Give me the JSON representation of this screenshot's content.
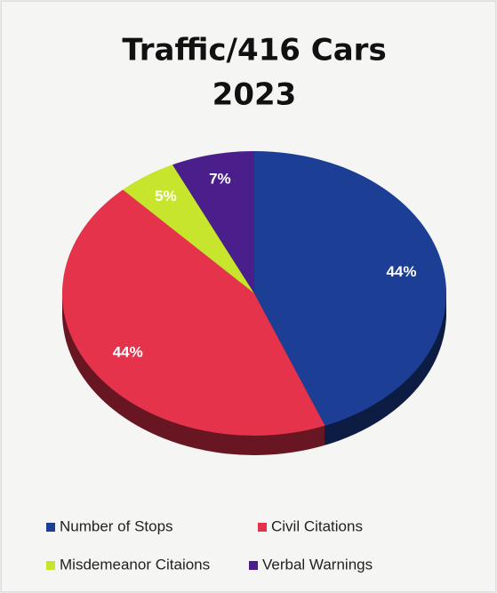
{
  "chart_data": {
    "type": "pie",
    "title": [
      "Traffic/416 Cars",
      "2023"
    ],
    "categories": [
      "Number of Stops",
      "Civil Citations",
      "Misdemeanor Citaions",
      "Verbal Warnings"
    ],
    "values": [
      44,
      44,
      5,
      7
    ],
    "value_labels": [
      "44%",
      "44%",
      "5%",
      "7%"
    ],
    "colors": [
      "#1c3f95",
      "#e6334c",
      "#c6e52c",
      "#4a1f8c"
    ],
    "legend": "bottom"
  }
}
